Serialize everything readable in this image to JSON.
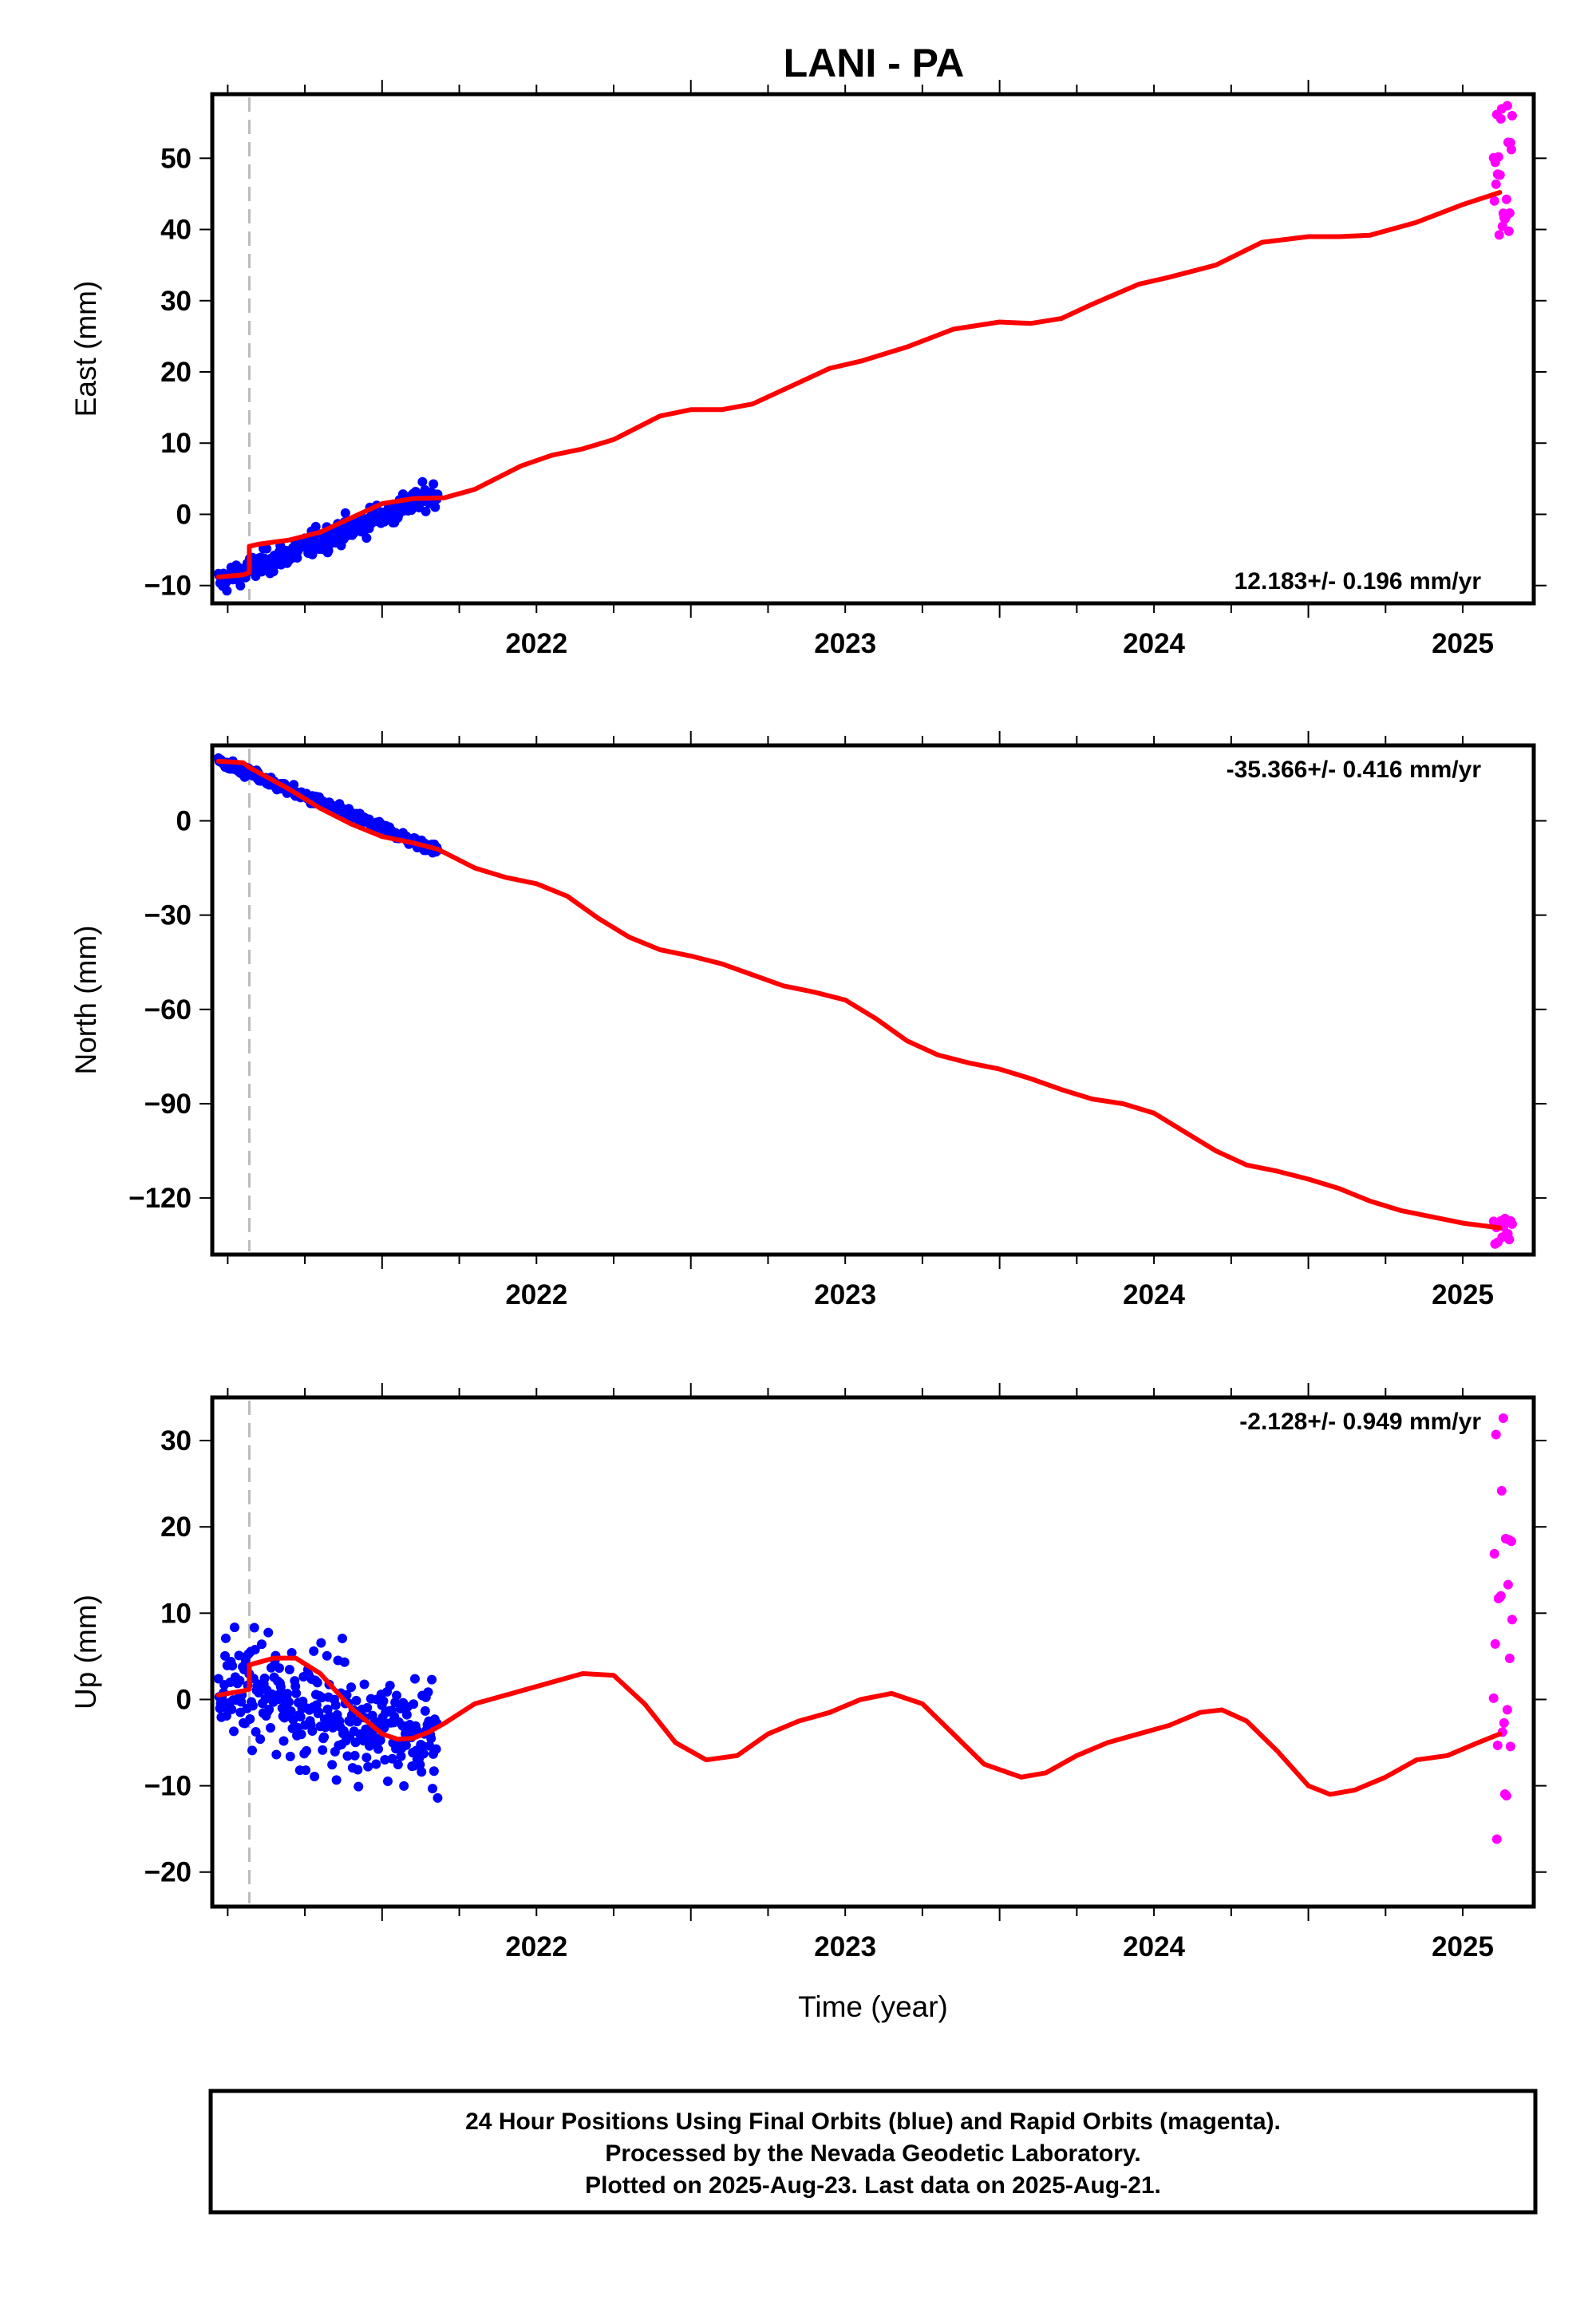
{
  "title": "LANI - PA",
  "colors": {
    "final_orbits": "#0000ff",
    "rapid_orbits": "#ff00ff",
    "model": "#ff0000",
    "event_line": "#bbbbbb",
    "frame": "#000000"
  },
  "footer": [
    "24 Hour Positions Using Final Orbits (blue) and Rapid Orbits (magenta).",
    "Processed by the Nevada Geodetic Laboratory.",
    "Plotted on 2025-Aug-23. Last data on 2025-Aug-21."
  ],
  "chart_data": [
    {
      "type": "scatter",
      "component": "east",
      "ylabel": "East (mm)",
      "xlabel": "",
      "xlim": [
        2021.45,
        2025.73
      ],
      "ylim": [
        -12.5,
        59
      ],
      "xticks": [
        "2022",
        "2023",
        "2024",
        "2025"
      ],
      "yticks": [
        "−10",
        "0",
        "10",
        "20",
        "30",
        "40",
        "50"
      ],
      "yticks_values": [
        -10,
        0,
        10,
        20,
        30,
        40,
        50
      ],
      "rate_label": "12.183+/- 0.196 mm/yr",
      "rate_position": "bottom-right",
      "event_line_x": 2021.57,
      "grid": false,
      "series": [
        {
          "kind": "points",
          "color": "blue",
          "x_range": [
            2021.47,
            2022.18
          ],
          "y_start": -9.5,
          "y_end": 3.0,
          "noise": 1.5,
          "n": 260
        },
        {
          "kind": "points",
          "color": "magenta",
          "x_range": [
            2025.6,
            2025.66
          ],
          "y_start": 39,
          "y_end": 58,
          "n": 24
        },
        {
          "kind": "line",
          "color": "red",
          "x": [
            2021.47,
            2021.55,
            2021.57,
            2021.57,
            2021.6,
            2021.7,
            2021.8,
            2021.9,
            2022.0,
            2022.1,
            2022.2,
            2022.3,
            2022.45,
            2022.55,
            2022.65,
            2022.75,
            2022.9,
            2023.0,
            2023.1,
            2023.2,
            2023.3,
            2023.45,
            2023.55,
            2023.7,
            2023.85,
            2024.0,
            2024.1,
            2024.2,
            2024.3,
            2024.45,
            2024.55,
            2024.7,
            2024.85,
            2025.0,
            2025.1,
            2025.2,
            2025.35,
            2025.5,
            2025.62
          ],
          "y": [
            -8.8,
            -8.5,
            -8.2,
            -4.5,
            -4.2,
            -3.6,
            -2.5,
            -0.5,
            1.5,
            2.2,
            2.3,
            3.5,
            6.8,
            8.3,
            9.2,
            10.5,
            13.8,
            14.7,
            14.7,
            15.5,
            17.5,
            20.5,
            21.5,
            23.5,
            26.0,
            27.0,
            26.8,
            27.5,
            29.5,
            32.3,
            33.3,
            35.0,
            38.2,
            39.0,
            39.0,
            39.2,
            41.0,
            43.5,
            45.2
          ]
        }
      ]
    },
    {
      "type": "scatter",
      "component": "north",
      "ylabel": "North (mm)",
      "xlabel": "",
      "xlim": [
        2021.45,
        2025.73
      ],
      "ylim": [
        -138,
        24
      ],
      "xticks": [
        "2022",
        "2023",
        "2024",
        "2025"
      ],
      "yticks": [
        "−120",
        "−90",
        "−60",
        "−30",
        "0"
      ],
      "yticks_values": [
        -120,
        -90,
        -60,
        -30,
        0
      ],
      "rate_label": "-35.366+/- 0.416 mm/yr",
      "rate_position": "top-right",
      "event_line_x": 2021.57,
      "grid": false,
      "series": [
        {
          "kind": "points",
          "color": "blue",
          "x_range": [
            2021.47,
            2022.18
          ],
          "y_start": 19,
          "y_end": -9.5,
          "noise": 1.5,
          "n": 260
        },
        {
          "kind": "points",
          "color": "magenta",
          "x_range": [
            2025.6,
            2025.66
          ],
          "y_start": -126,
          "y_end": -135,
          "n": 14
        },
        {
          "kind": "line",
          "color": "red",
          "x": [
            2021.47,
            2021.55,
            2021.57,
            2021.7,
            2021.8,
            2021.9,
            2022.0,
            2022.1,
            2022.18,
            2022.3,
            2022.4,
            2022.5,
            2022.6,
            2022.7,
            2022.8,
            2022.9,
            2023.0,
            2023.1,
            2023.2,
            2023.3,
            2023.4,
            2023.5,
            2023.6,
            2023.7,
            2023.8,
            2023.9,
            2024.0,
            2024.1,
            2024.2,
            2024.3,
            2024.4,
            2024.5,
            2024.6,
            2024.7,
            2024.8,
            2024.9,
            2025.0,
            2025.1,
            2025.2,
            2025.3,
            2025.4,
            2025.5,
            2025.62
          ],
          "y": [
            19,
            18.5,
            17,
            10,
            4,
            -1,
            -5,
            -7,
            -9,
            -15,
            -18,
            -20,
            -24,
            -31,
            -37,
            -41,
            -43,
            -45.5,
            -49,
            -52.5,
            -54.5,
            -57,
            -63,
            -70,
            -74.5,
            -77,
            -79,
            -82,
            -85.5,
            -88.5,
            -90,
            -93,
            -99,
            -105,
            -109.5,
            -111.5,
            -114,
            -117,
            -121,
            -124,
            -126,
            -128,
            -129.5
          ]
        }
      ]
    },
    {
      "type": "scatter",
      "component": "up",
      "ylabel": "Up (mm)",
      "xlabel": "Time (year)",
      "xlim": [
        2021.45,
        2025.73
      ],
      "ylim": [
        -24,
        35
      ],
      "xticks": [
        "2022",
        "2023",
        "2024",
        "2025"
      ],
      "yticks": [
        "−20",
        "−10",
        "0",
        "10",
        "20",
        "30"
      ],
      "yticks_values": [
        -20,
        -10,
        0,
        10,
        20,
        30
      ],
      "rate_label": "-2.128+/- 0.949 mm/yr",
      "rate_position": "top-right",
      "event_line_x": 2021.57,
      "grid": false,
      "series": [
        {
          "kind": "points",
          "color": "blue",
          "x_range": [
            2021.47,
            2022.18
          ],
          "y_start": 2,
          "y_end": -5,
          "noise": 5.5,
          "n": 300
        },
        {
          "kind": "points",
          "color": "magenta",
          "x_range": [
            2025.6,
            2025.66
          ],
          "y_start": -17,
          "y_end": 33.5,
          "n": 24
        },
        {
          "kind": "line",
          "color": "red",
          "x": [
            2021.47,
            2021.55,
            2021.57,
            2021.57,
            2021.65,
            2021.72,
            2021.8,
            2021.9,
            2022.0,
            2022.05,
            2022.1,
            2022.15,
            2022.2,
            2022.3,
            2022.45,
            2022.55,
            2022.65,
            2022.75,
            2022.85,
            2022.95,
            2023.05,
            2023.15,
            2023.25,
            2023.35,
            2023.45,
            2023.55,
            2023.65,
            2023.75,
            2023.85,
            2023.95,
            2024.07,
            2024.15,
            2024.25,
            2024.35,
            2024.45,
            2024.55,
            2024.65,
            2024.72,
            2024.8,
            2024.9,
            2025.0,
            2025.07,
            2025.15,
            2025.25,
            2025.35,
            2025.45,
            2025.55,
            2025.62
          ],
          "y": [
            0.5,
            1.0,
            1.2,
            4.0,
            4.8,
            4.8,
            3.0,
            -1.0,
            -4.0,
            -4.6,
            -4.5,
            -3.8,
            -2.8,
            -0.5,
            1.0,
            2.0,
            3.0,
            2.8,
            -0.5,
            -5.0,
            -7.0,
            -6.5,
            -4.0,
            -2.5,
            -1.5,
            0.0,
            0.7,
            -0.5,
            -4.0,
            -7.5,
            -9.0,
            -8.5,
            -6.5,
            -5.0,
            -4.0,
            -3.0,
            -1.5,
            -1.2,
            -2.5,
            -6.0,
            -10.0,
            -11.0,
            -10.5,
            -9.0,
            -7.0,
            -6.5,
            -5.0,
            -4.0
          ]
        }
      ]
    }
  ]
}
